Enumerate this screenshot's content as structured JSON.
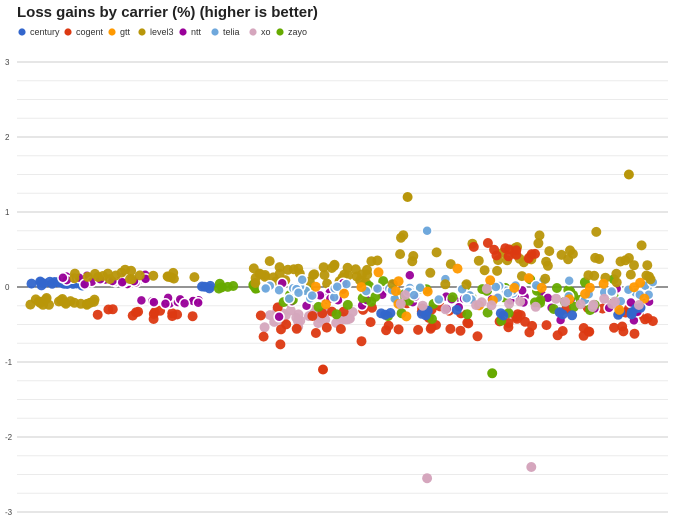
{
  "chart_data": {
    "type": "scatter",
    "title": "Loss gains by carrier (%) (higher is better)",
    "xlabel": "",
    "ylabel": "",
    "ylim": [
      -3,
      3
    ],
    "yticks": [
      -3,
      -2,
      -1,
      0,
      1,
      2,
      3
    ],
    "grid": true,
    "legend_position": "top-left",
    "series": [
      {
        "name": "century",
        "color": "#3366cc"
      },
      {
        "name": "cogent",
        "color": "#dc3912"
      },
      {
        "name": "gtt",
        "color": "#ff9900"
      },
      {
        "name": "level3",
        "color": "#b8960a"
      },
      {
        "name": "ntt",
        "color": "#990099"
      },
      {
        "name": "telia",
        "color": "#6fa8dc"
      },
      {
        "name": "xo",
        "color": "#d5a6bd"
      },
      {
        "name": "zayo",
        "color": "#66aa00"
      }
    ],
    "highlights": [
      {
        "series": "telia",
        "x": 0.63,
        "y": 0.75
      },
      {
        "series": "xo",
        "x": 0.63,
        "y": -2.55
      },
      {
        "series": "xo",
        "x": 0.79,
        "y": -2.4
      },
      {
        "series": "zayo",
        "x": 0.73,
        "y": -1.15
      },
      {
        "series": "level3",
        "x": 0.94,
        "y": 1.5
      },
      {
        "series": "cogent",
        "x": 0.47,
        "y": -1.1
      },
      {
        "series": "level3",
        "x": 0.6,
        "y": 1.2
      }
    ]
  }
}
